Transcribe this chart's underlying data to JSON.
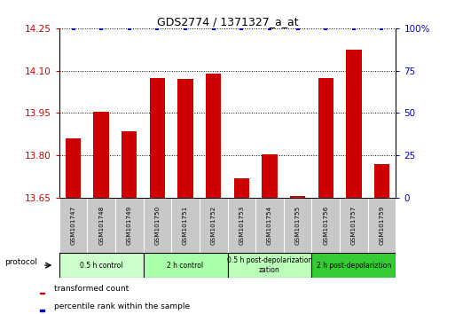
{
  "title": "GDS2774 / 1371327_a_at",
  "samples": [
    "GSM101747",
    "GSM101748",
    "GSM101749",
    "GSM101750",
    "GSM101751",
    "GSM101752",
    "GSM101753",
    "GSM101754",
    "GSM101755",
    "GSM101756",
    "GSM101757",
    "GSM101759"
  ],
  "bar_values": [
    13.86,
    13.955,
    13.885,
    14.075,
    14.07,
    14.09,
    13.72,
    13.805,
    13.655,
    14.075,
    14.175,
    13.77
  ],
  "ylim_left": [
    13.65,
    14.25
  ],
  "ylim_right": [
    0,
    100
  ],
  "yticks_left": [
    13.65,
    13.8,
    13.95,
    14.1,
    14.25
  ],
  "yticks_right": [
    0,
    25,
    50,
    75,
    100
  ],
  "ytick_labels_right": [
    "0",
    "25",
    "50",
    "75",
    "100%"
  ],
  "bar_color": "#CC0000",
  "scatter_color": "#0000CC",
  "bg_color": "#ffffff",
  "protocol_groups": [
    {
      "label": "0.5 h control",
      "start": 0,
      "end": 3,
      "color": "#ccffcc"
    },
    {
      "label": "2 h control",
      "start": 3,
      "end": 6,
      "color": "#aaffaa"
    },
    {
      "label": "0.5 h post-depolarization\nzation",
      "start": 6,
      "end": 9,
      "color": "#bbffbb"
    },
    {
      "label": "2 h post-depolariztion",
      "start": 9,
      "end": 12,
      "color": "#33cc33"
    }
  ],
  "ytick_gridlines": [
    13.8,
    13.95,
    14.1
  ],
  "left_tick_color": "#CC0000",
  "right_tick_color": "#0000CC",
  "cell_color": "#c8c8c8"
}
